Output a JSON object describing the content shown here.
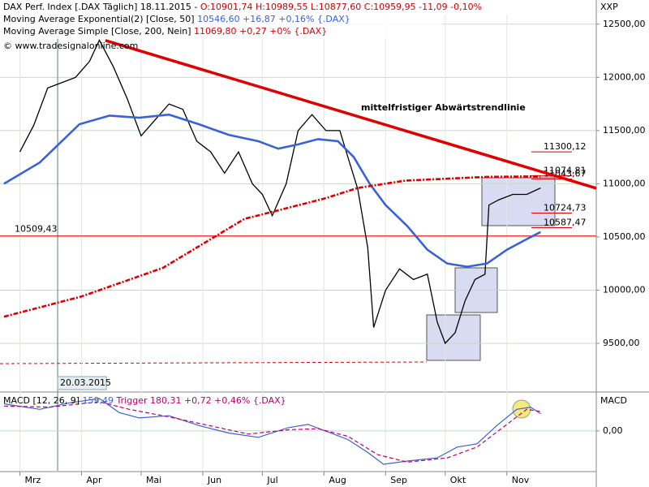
{
  "chart_data": [
    {
      "type": "line",
      "title": "DAX Perf. Index [.DAX  Täglich] 18.11.2015 -",
      "title_values": "O:10901,74 H:10989,55 L:10877,60 C:10959,95 -11,09 -0,10%",
      "copyright": "© www.tradesignalonline.com",
      "axis_label": "XXP",
      "xlim": [
        -10,
        290
      ],
      "xticks": [
        {
          "value": 0,
          "label": "Mrz"
        },
        {
          "value": 31,
          "label": "Apr"
        },
        {
          "value": 61,
          "label": "Mai"
        },
        {
          "value": 92,
          "label": "Jun"
        },
        {
          "value": 122,
          "label": "Jul"
        },
        {
          "value": 153,
          "label": "Aug"
        },
        {
          "value": 184,
          "label": "Sep"
        },
        {
          "value": 214,
          "label": "Okt"
        },
        {
          "value": 245,
          "label": "Nov"
        }
      ],
      "ylim": [
        9050,
        12590
      ],
      "yticks": [
        {
          "value": 9500,
          "label": "9500,00"
        },
        {
          "value": 10000,
          "label": "10000,00"
        },
        {
          "value": 10500,
          "label": "10500,00"
        },
        {
          "value": 11000,
          "label": "11000,00"
        },
        {
          "value": 11500,
          "label": "11500,00"
        },
        {
          "value": 12000,
          "label": "12000,00"
        },
        {
          "value": 12500,
          "label": "12500,00"
        }
      ],
      "grid": true,
      "series": [
        {
          "name": "DAX",
          "color": "#000000",
          "x": [
            0,
            7,
            14,
            21,
            28,
            35,
            40,
            47,
            54,
            61,
            68,
            75,
            82,
            89,
            96,
            103,
            110,
            117,
            122,
            127,
            134,
            140,
            147,
            154,
            161,
            165,
            170,
            175,
            178,
            184,
            191,
            198,
            205,
            210,
            214,
            219,
            224,
            229,
            234,
            236,
            241,
            248,
            255,
            262
          ],
          "values": [
            11300,
            11550,
            11900,
            11950,
            12000,
            12150,
            12350,
            12100,
            11800,
            11450,
            11600,
            11750,
            11700,
            11400,
            11300,
            11100,
            11300,
            11000,
            10900,
            10700,
            11000,
            11500,
            11650,
            11500,
            11500,
            11250,
            10950,
            10400,
            9650,
            10000,
            10200,
            10100,
            10150,
            9700,
            9500,
            9600,
            9900,
            10100,
            10150,
            10800,
            10850,
            10900,
            10900,
            10960
          ]
        },
        {
          "name": "Moving Average Exponential(2) [Close, 50]",
          "legend_value": "10546,60 +16,87 +0,16% {.DAX}",
          "color": "#3a62d8",
          "x": [
            -8,
            10,
            20,
            30,
            45,
            60,
            75,
            90,
            105,
            120,
            130,
            140,
            150,
            160,
            168,
            176,
            184,
            195,
            205,
            215,
            225,
            235,
            245,
            255,
            262
          ],
          "values": [
            11000,
            11200,
            11380,
            11560,
            11640,
            11620,
            11650,
            11560,
            11460,
            11400,
            11330,
            11370,
            11420,
            11400,
            11250,
            11000,
            10800,
            10600,
            10380,
            10250,
            10220,
            10250,
            10380,
            10480,
            10547
          ]
        },
        {
          "name": "Moving Average Simple [Close, 200, Nein]",
          "legend_value": "11069,80 +0,27 +0% {.DAX}",
          "color": "#dd0000",
          "dashed": true,
          "x": [
            -8,
            31,
            72,
            113,
            153,
            170,
            194,
            235,
            262
          ],
          "values": [
            9750,
            9940,
            10210,
            10670,
            10860,
            10960,
            11030,
            11065,
            11070
          ]
        }
      ],
      "trendline": {
        "label": "mittelfristiger Abwärtstrendlinie",
        "color": "#e00000",
        "x": [
          43,
          290
        ],
        "values": [
          12347,
          10958
        ]
      },
      "hline": {
        "label": "10509,43",
        "value": 10509.43,
        "color": "#dd0000"
      },
      "price_labels": [
        {
          "label": "11300,12",
          "value": 11300.12
        },
        {
          "label": "11074,81",
          "value": 11074.81
        },
        {
          "label": "11043,67",
          "value": 11043.67
        },
        {
          "label": "10724,73",
          "value": 10724.73
        },
        {
          "label": "10587,47",
          "value": 10587.47
        }
      ],
      "marker": {
        "x": 19,
        "label": "20.03.2015"
      }
    },
    {
      "type": "line",
      "title": "MACD [12, 26, 9]",
      "axis_label": "MACD",
      "xlim": [
        -10,
        290
      ],
      "ylim": [
        -370,
        345
      ],
      "yticks": [
        {
          "value": 0,
          "label": "0,00"
        }
      ],
      "series": [
        {
          "name": "MACD",
          "legend_value": "159,49",
          "color": "#3a62d8",
          "x": [
            -8,
            10,
            25,
            40,
            50,
            60,
            75,
            90,
            105,
            120,
            135,
            145,
            155,
            165,
            175,
            183,
            195,
            210,
            220,
            230,
            240,
            250,
            257,
            262
          ],
          "values": [
            250,
            200,
            260,
            300,
            170,
            120,
            140,
            50,
            -20,
            -60,
            30,
            60,
            -10,
            -80,
            -200,
            -310,
            -280,
            -250,
            -150,
            -120,
            50,
            200,
            220,
            159
          ]
        },
        {
          "name": "Trigger",
          "legend_value": "180,31 +0,72 +0,46% {.DAX}",
          "color": "#c0006a",
          "dashed": true,
          "x": [
            -8,
            15,
            40,
            55,
            75,
            95,
            115,
            135,
            150,
            165,
            180,
            195,
            215,
            230,
            245,
            255,
            262
          ],
          "values": [
            230,
            220,
            270,
            200,
            130,
            50,
            -30,
            10,
            20,
            -50,
            -220,
            -290,
            -250,
            -150,
            60,
            200,
            180
          ]
        }
      ]
    }
  ]
}
